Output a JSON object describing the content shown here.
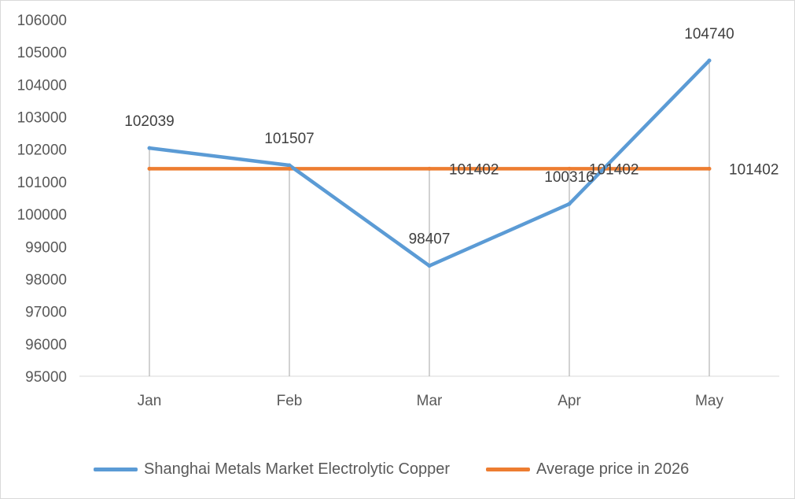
{
  "chart_data": {
    "type": "line",
    "categories": [
      "Jan",
      "Feb",
      "Mar",
      "Apr",
      "May"
    ],
    "series": [
      {
        "name": "Shanghai Metals Market Electrolytic Copper",
        "values": [
          102039,
          101507,
          98407,
          100316,
          104740
        ],
        "color": "#5b9bd5"
      },
      {
        "name": "Average price in 2026",
        "values": [
          101402,
          101402,
          101402,
          101402,
          101402
        ],
        "color": "#ed7d31"
      }
    ],
    "data_labels": {
      "copper": [
        "102039",
        "101507",
        "98407",
        "100316",
        "104740"
      ],
      "average": [
        "101402",
        "101402",
        "101402"
      ]
    },
    "ylim": [
      95000,
      106000
    ],
    "yticks": [
      "95000",
      "96000",
      "97000",
      "98000",
      "99000",
      "100000",
      "101000",
      "102000",
      "103000",
      "104000",
      "105000",
      "106000"
    ],
    "drop_lines": true,
    "grid": false,
    "legend": "bottom"
  }
}
